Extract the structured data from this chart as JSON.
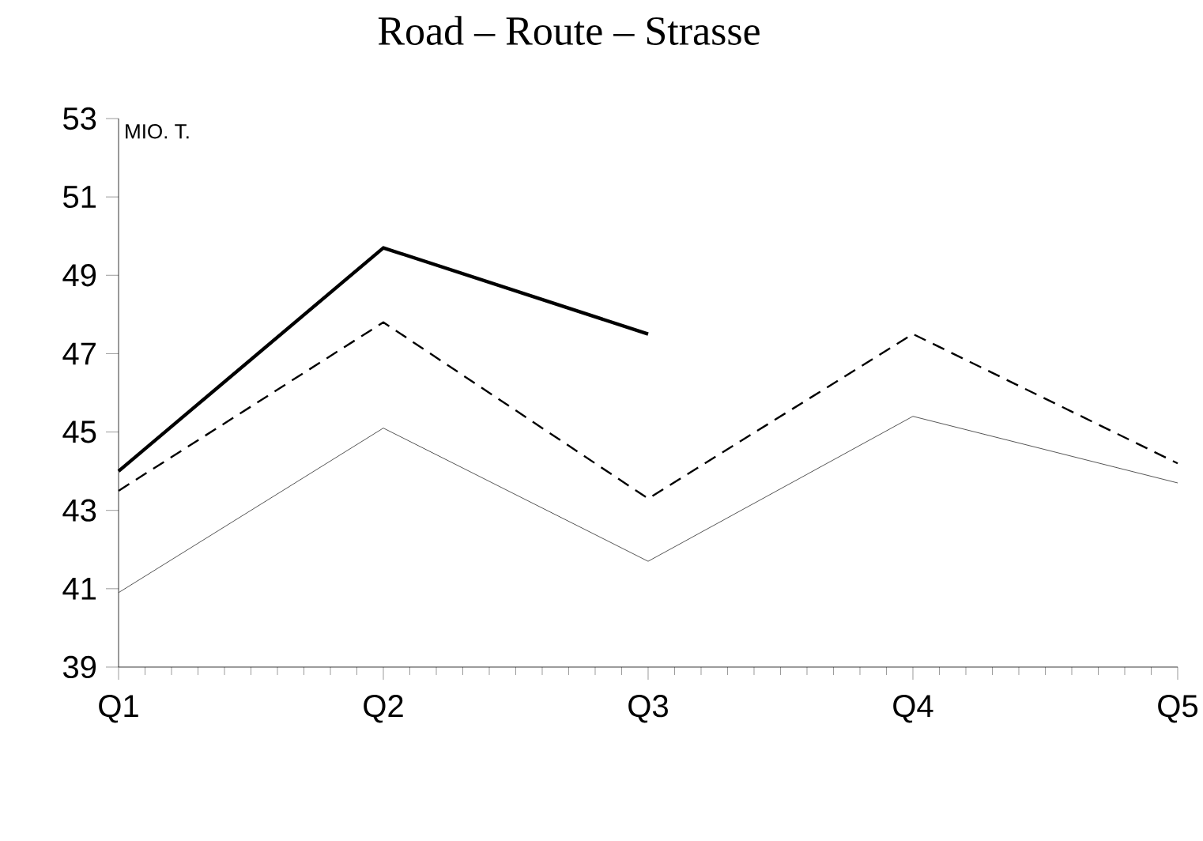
{
  "chart_data": {
    "type": "line",
    "title": "Road – Route – Strasse",
    "ylabel": "MIO. T.",
    "categories": [
      "Q1",
      "Q2",
      "Q3",
      "Q4",
      "Q5"
    ],
    "series": [
      {
        "color": "#000000",
        "line_style": "solid",
        "values": [
          44.0,
          49.7,
          47.5,
          null,
          null
        ]
      },
      {
        "color": "#000000",
        "line_style": "dashed",
        "values": [
          43.5,
          47.8,
          43.3,
          47.5,
          44.2
        ]
      },
      {
        "color": "#555555",
        "line_style": "solid",
        "values": [
          40.9,
          45.1,
          41.7,
          45.4,
          43.7
        ]
      }
    ],
    "ylim": [
      39,
      53
    ],
    "yticks": [
      39,
      41,
      43,
      45,
      47,
      49,
      51,
      53
    ],
    "grid": false,
    "marker": "none"
  }
}
